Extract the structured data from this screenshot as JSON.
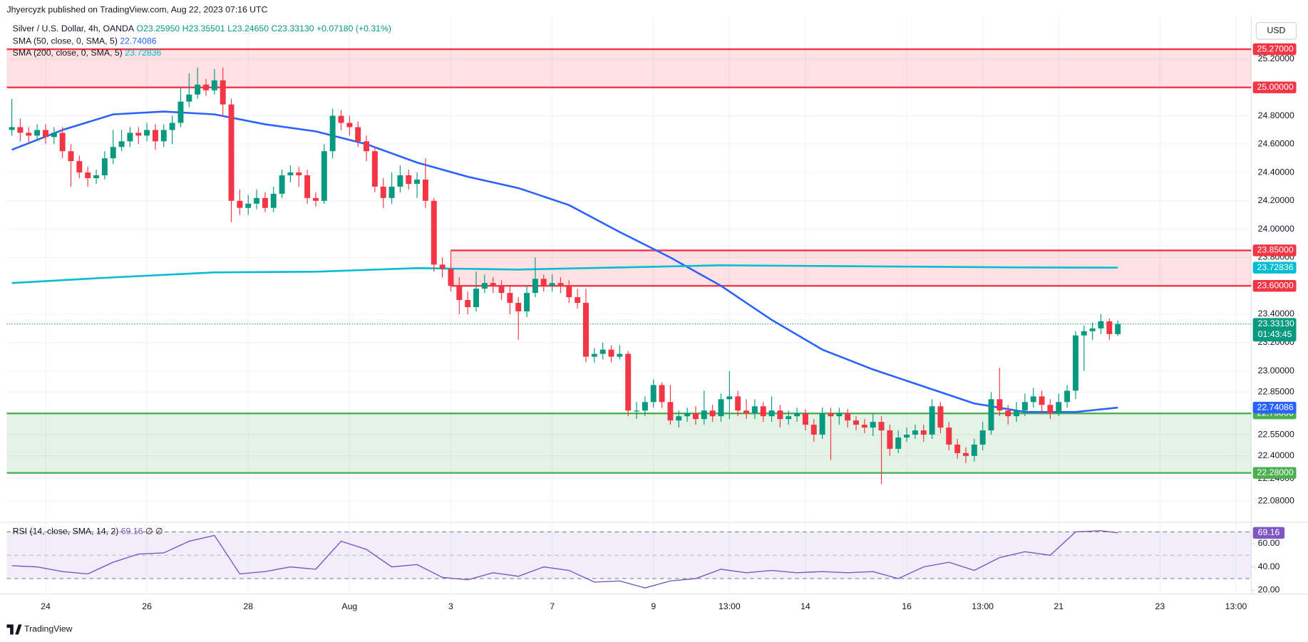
{
  "header": {
    "published": "Jhyercyzk published on TradingView.com, Aug 22, 2023 07:16 UTC",
    "footer": "TradingView"
  },
  "chart_data": [
    {
      "type": "candlestick",
      "title": "Silver / U.S. Dollar, 4h, OANDA",
      "ohlc_legend": [
        "O23.25950",
        "H23.35501",
        "L23.24650",
        "C23.33130",
        "+0.07180 (+0.31%)"
      ],
      "currency": "USD",
      "open": [
        24.7,
        24.72,
        24.68,
        24.66,
        24.7,
        24.65,
        24.68,
        24.55,
        24.48,
        24.4,
        24.36,
        24.38,
        24.5,
        24.58,
        24.62,
        24.68,
        24.66,
        24.7,
        24.62,
        24.7,
        24.75,
        24.9,
        24.95,
        25.02,
        24.98,
        25.05,
        24.88,
        24.2,
        24.15,
        24.18,
        24.22,
        24.15,
        24.25,
        24.38,
        24.4,
        24.38,
        24.22,
        24.2,
        24.55,
        24.8,
        24.75,
        24.72,
        24.62,
        24.55,
        24.3,
        24.22,
        24.3,
        24.38,
        24.32,
        24.35,
        24.2,
        23.75,
        23.72,
        23.6,
        23.5,
        23.45,
        23.58,
        23.62,
        23.6,
        23.55,
        23.48,
        23.42,
        23.55,
        23.65,
        23.6,
        23.62,
        23.6,
        23.52,
        23.48,
        23.1,
        23.12,
        23.15,
        23.1,
        23.12,
        22.72,
        22.72,
        22.78,
        22.9,
        22.78,
        22.65,
        22.68,
        22.7,
        22.66,
        22.72,
        22.68,
        22.8,
        22.82,
        22.72,
        22.7,
        22.75,
        22.68,
        22.72,
        22.66,
        22.68,
        22.7,
        22.62,
        22.55,
        22.7,
        22.68,
        22.7,
        22.65,
        22.62,
        22.6,
        22.64,
        22.58,
        22.45,
        22.53,
        22.55,
        22.58,
        22.55,
        22.75,
        22.6,
        22.48,
        22.42,
        22.4,
        22.48,
        22.58,
        22.8,
        22.72,
        22.68,
        22.72,
        22.78,
        22.82,
        22.76,
        22.7,
        22.78,
        22.86,
        23.25,
        23.28,
        23.3,
        23.35,
        23.2595
      ],
      "high": [
        24.92,
        24.78,
        24.72,
        24.74,
        24.74,
        24.72,
        24.72,
        24.6,
        24.52,
        24.44,
        24.42,
        24.55,
        24.7,
        24.7,
        24.72,
        24.72,
        24.75,
        24.74,
        24.74,
        24.8,
        25.0,
        25.1,
        25.14,
        25.06,
        25.13,
        25.14,
        24.92,
        24.28,
        24.24,
        24.28,
        24.26,
        24.3,
        24.42,
        24.45,
        24.44,
        24.42,
        24.26,
        24.6,
        24.85,
        24.84,
        24.8,
        24.76,
        24.66,
        24.58,
        24.36,
        24.4,
        24.45,
        24.42,
        24.4,
        24.5,
        24.22,
        23.8,
        23.75,
        23.66,
        23.56,
        23.7,
        23.68,
        23.66,
        23.64,
        23.6,
        23.52,
        23.6,
        23.8,
        23.68,
        23.68,
        23.66,
        23.64,
        23.58,
        23.58,
        23.16,
        23.2,
        23.18,
        23.18,
        23.14,
        22.78,
        22.82,
        22.94,
        22.92,
        22.9,
        22.72,
        22.74,
        22.75,
        22.86,
        22.76,
        22.84,
        23.0,
        22.86,
        22.8,
        22.8,
        22.78,
        22.82,
        22.76,
        22.72,
        22.74,
        22.73,
        22.66,
        22.74,
        22.74,
        22.74,
        22.73,
        22.68,
        22.66,
        22.7,
        22.68,
        22.62,
        22.58,
        22.6,
        22.62,
        22.62,
        22.8,
        22.78,
        22.64,
        22.52,
        22.46,
        22.52,
        22.64,
        22.85,
        23.02,
        22.76,
        22.78,
        22.84,
        22.88,
        22.86,
        22.8,
        22.84,
        22.9,
        23.28,
        23.32,
        23.34,
        23.4,
        23.37,
        23.35501
      ],
      "low": [
        24.66,
        24.62,
        24.6,
        24.62,
        24.6,
        24.6,
        24.5,
        24.3,
        24.36,
        24.3,
        24.32,
        24.35,
        24.46,
        24.55,
        24.58,
        24.6,
        24.62,
        24.56,
        24.58,
        24.6,
        24.72,
        24.86,
        24.92,
        24.94,
        24.95,
        24.8,
        24.05,
        24.1,
        24.1,
        24.14,
        24.12,
        24.12,
        24.22,
        24.33,
        24.3,
        24.18,
        24.16,
        24.18,
        24.5,
        24.7,
        24.66,
        24.58,
        24.48,
        24.26,
        24.15,
        24.18,
        24.26,
        24.28,
        24.22,
        24.15,
        23.7,
        23.66,
        23.56,
        23.4,
        23.4,
        23.42,
        23.55,
        23.55,
        23.5,
        23.4,
        23.22,
        23.38,
        23.52,
        23.56,
        23.56,
        23.55,
        23.48,
        23.44,
        23.06,
        23.06,
        23.08,
        23.06,
        23.08,
        22.68,
        22.66,
        22.68,
        22.74,
        22.74,
        22.62,
        22.6,
        22.64,
        22.62,
        22.62,
        22.64,
        22.64,
        22.66,
        22.68,
        22.66,
        22.66,
        22.64,
        22.64,
        22.6,
        22.62,
        22.64,
        22.58,
        22.5,
        22.52,
        22.37,
        22.62,
        22.6,
        22.58,
        22.56,
        22.54,
        22.2,
        22.4,
        22.42,
        22.5,
        22.52,
        22.5,
        22.52,
        22.56,
        22.44,
        22.38,
        22.35,
        22.36,
        22.44,
        22.55,
        22.68,
        22.62,
        22.64,
        22.68,
        22.74,
        22.7,
        22.66,
        22.68,
        22.74,
        22.8,
        23.0,
        23.22,
        23.26,
        23.22,
        23.2465
      ],
      "close": [
        24.72,
        24.68,
        24.66,
        24.7,
        24.65,
        24.68,
        24.55,
        24.48,
        24.4,
        24.36,
        24.38,
        24.5,
        24.58,
        24.62,
        24.68,
        24.66,
        24.7,
        24.62,
        24.7,
        24.75,
        24.9,
        24.95,
        25.02,
        24.98,
        25.05,
        24.88,
        24.2,
        24.15,
        24.18,
        24.22,
        24.15,
        24.25,
        24.38,
        24.4,
        24.38,
        24.22,
        24.2,
        24.55,
        24.8,
        24.75,
        24.72,
        24.62,
        24.55,
        24.3,
        24.22,
        24.3,
        24.38,
        24.32,
        24.35,
        24.2,
        23.75,
        23.72,
        23.6,
        23.5,
        23.45,
        23.58,
        23.62,
        23.6,
        23.55,
        23.48,
        23.42,
        23.55,
        23.65,
        23.6,
        23.62,
        23.6,
        23.52,
        23.48,
        23.1,
        23.12,
        23.15,
        23.1,
        23.12,
        22.72,
        22.72,
        22.78,
        22.9,
        22.78,
        22.65,
        22.68,
        22.7,
        22.66,
        22.72,
        22.68,
        22.8,
        22.82,
        22.72,
        22.7,
        22.75,
        22.68,
        22.72,
        22.66,
        22.68,
        22.7,
        22.62,
        22.55,
        22.7,
        22.68,
        22.7,
        22.65,
        22.62,
        22.6,
        22.64,
        22.58,
        22.45,
        22.53,
        22.55,
        22.58,
        22.55,
        22.75,
        22.6,
        22.48,
        22.42,
        22.4,
        22.48,
        22.58,
        22.8,
        22.72,
        22.68,
        22.72,
        22.78,
        22.82,
        22.76,
        22.7,
        22.78,
        22.86,
        23.25,
        23.28,
        23.3,
        23.35,
        23.2595,
        23.3313
      ],
      "up_color": "#089981",
      "down_color": "#f23645",
      "xlim": [
        -0.6,
        146.8
      ],
      "xticks": [
        {
          "value": 4,
          "label": "24"
        },
        {
          "value": 16,
          "label": "26"
        },
        {
          "value": 28,
          "label": "28"
        },
        {
          "value": 40,
          "label": "Aug"
        },
        {
          "value": 52,
          "label": "3"
        },
        {
          "value": 64,
          "label": "7"
        },
        {
          "value": 76,
          "label": "9"
        },
        {
          "value": 85,
          "label": "13:00"
        },
        {
          "value": 94,
          "label": "14"
        },
        {
          "value": 106,
          "label": "16"
        },
        {
          "value": 115,
          "label": "13:00"
        },
        {
          "value": 124,
          "label": "21"
        },
        {
          "value": 136,
          "label": "23"
        },
        {
          "value": 145,
          "label": "13:00"
        }
      ],
      "ylim": [
        21.94,
        25.47
      ],
      "yticks": [
        {
          "value": 22.08,
          "label": "22.08000"
        },
        {
          "value": 22.24,
          "label": "22.24000"
        },
        {
          "value": 22.4,
          "label": "22.40000"
        },
        {
          "value": 22.55,
          "label": "22.55000"
        },
        {
          "value": 22.85,
          "label": "22.85000"
        },
        {
          "value": 23.0,
          "label": "23.00000"
        },
        {
          "value": 23.2,
          "label": "23.20000"
        },
        {
          "value": 23.4,
          "label": "23.40000"
        },
        {
          "value": 23.8,
          "label": "23.80000"
        },
        {
          "value": 24.0,
          "label": "24.00000"
        },
        {
          "value": 24.2,
          "label": "24.20000"
        },
        {
          "value": 24.4,
          "label": "24.40000"
        },
        {
          "value": 24.6,
          "label": "24.60000"
        },
        {
          "value": 24.8,
          "label": "24.80000"
        },
        {
          "value": 25.2,
          "label": "25.20000"
        }
      ],
      "grid": true,
      "series": [
        {
          "name": "SMA (50, close, 0, SMA, 5)",
          "color": "#2962ff",
          "x": [
            0,
            6,
            12,
            18,
            24,
            30,
            36,
            42,
            48,
            54,
            60,
            66,
            72,
            78,
            84,
            90,
            96,
            102,
            108,
            114,
            120,
            126,
            131
          ],
          "values": [
            24.56,
            24.7,
            24.81,
            24.83,
            24.81,
            24.74,
            24.69,
            24.6,
            24.47,
            24.37,
            24.29,
            24.17,
            23.98,
            23.8,
            23.6,
            23.36,
            23.15,
            23.01,
            22.89,
            22.77,
            22.71,
            22.71,
            22.74086
          ]
        },
        {
          "name": "SMA (200, close, 0, SMA, 5)",
          "color": "#00bcd4",
          "x": [
            0,
            12,
            24,
            36,
            48,
            60,
            72,
            84,
            96,
            108,
            120,
            131
          ],
          "values": [
            23.62,
            23.66,
            23.695,
            23.7,
            23.725,
            23.715,
            23.73,
            23.745,
            23.74,
            23.735,
            23.73,
            23.72836
          ]
        }
      ],
      "zones": [
        {
          "from": 25.0,
          "to": 25.27,
          "labels": [
            "25.00000",
            "25.27000"
          ],
          "color": "#f23645"
        },
        {
          "from": 23.6,
          "to": 23.85,
          "labels": [
            "23.60000",
            "23.85000"
          ],
          "color": "#f23645",
          "start": 52
        },
        {
          "from": 22.28,
          "to": 22.7,
          "labels": [
            "22.28000",
            "22.70000"
          ],
          "color": "#4caf50"
        }
      ],
      "last_price": {
        "value": 23.3313,
        "label": "23.33130",
        "countdown": "01:43:45"
      }
    },
    {
      "type": "line",
      "title": "RSI (14, close, SMA, 14, 2)",
      "extras": [
        "∅",
        "∅"
      ],
      "color": "#7e57c2",
      "x": [
        0,
        3,
        6,
        9,
        12,
        15,
        18,
        21,
        24,
        27,
        30,
        33,
        36,
        39,
        42,
        45,
        48,
        51,
        54,
        57,
        60,
        63,
        66,
        69,
        72,
        75,
        78,
        81,
        84,
        87,
        90,
        93,
        96,
        99,
        102,
        105,
        108,
        111,
        114,
        117,
        120,
        123,
        126,
        129,
        131
      ],
      "values": [
        41,
        40,
        36,
        34,
        44,
        51,
        52,
        62,
        67,
        34,
        36,
        40,
        38,
        62,
        55,
        40,
        42,
        31,
        29,
        35,
        32,
        40,
        37,
        27,
        28,
        22,
        28,
        30,
        38,
        35,
        37,
        35,
        36,
        35,
        36,
        30,
        40,
        44,
        37,
        48,
        53,
        50,
        70,
        71,
        69.16
      ],
      "ylim": [
        17.1,
        77.1
      ],
      "yticks": [
        {
          "value": 60,
          "label": "60.00"
        },
        {
          "value": 40,
          "label": "40.00"
        },
        {
          "value": 20,
          "label": "20.00"
        }
      ],
      "bands": [
        30,
        70
      ],
      "midline": 50
    }
  ]
}
